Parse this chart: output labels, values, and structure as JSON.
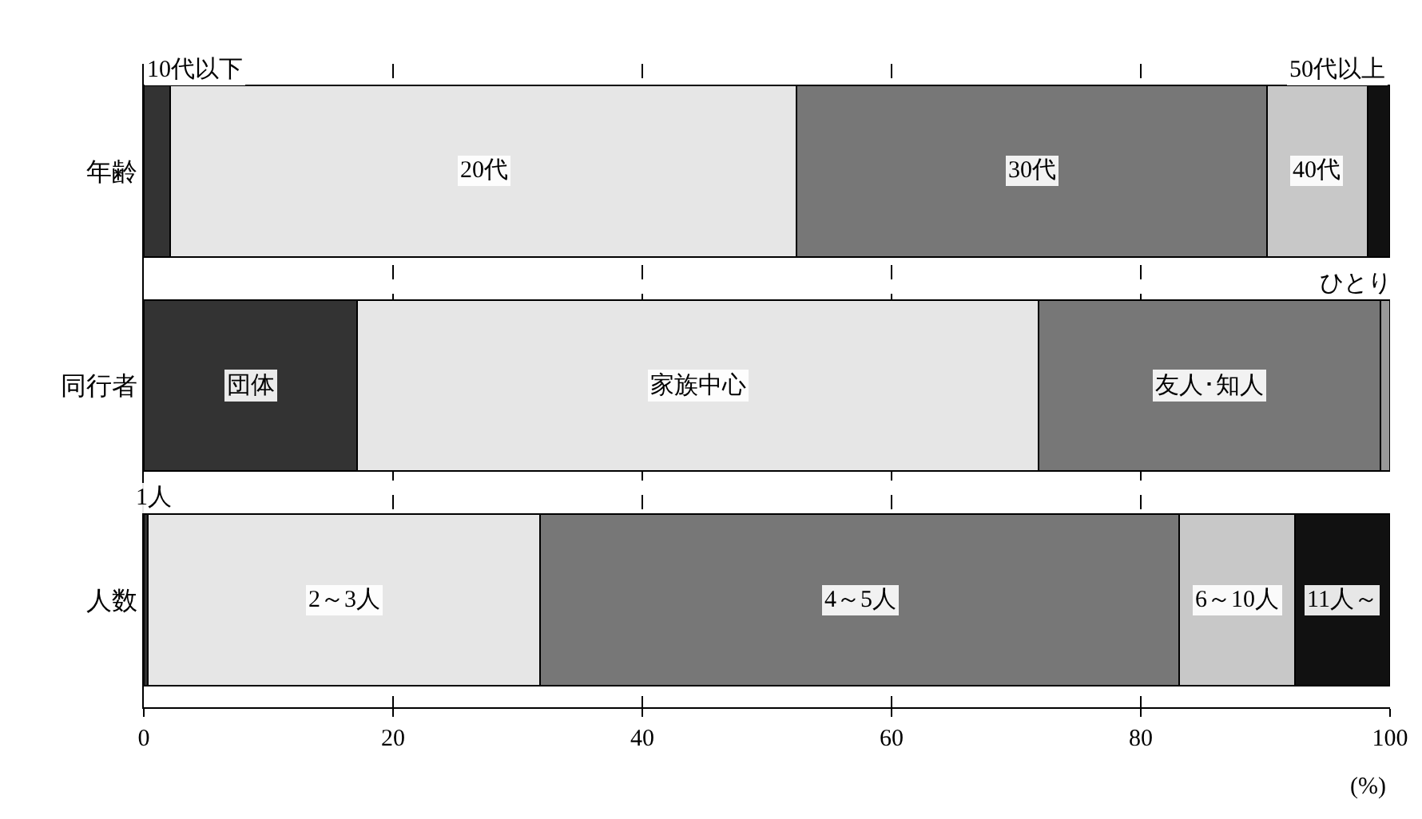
{
  "chart_data": {
    "type": "bar",
    "orientation": "horizontal",
    "stacked": true,
    "categories": [
      "年齢",
      "同行者",
      "人数"
    ],
    "series": [
      {
        "colors": [
          "#333333",
          "#333333",
          "#333333"
        ],
        "values": [
          2.1,
          17.1,
          0.3
        ]
      },
      {
        "colors": [
          "#e6e6e6",
          "#e6e6e6",
          "#e6e6e6"
        ],
        "values": [
          50.3,
          54.7,
          31.5
        ]
      },
      {
        "colors": [
          "#777777",
          "#777777",
          "#777777"
        ],
        "values": [
          37.7,
          27.4,
          51.3
        ]
      },
      {
        "colors": [
          "#c8c8c8",
          "#999999",
          "#c8c8c8"
        ],
        "values": [
          8.1,
          0.8,
          9.3
        ]
      },
      {
        "colors": [
          "#111111",
          "#111111",
          "#111111"
        ],
        "values": [
          1.8,
          null,
          7.6
        ]
      }
    ],
    "xlim": [
      0,
      100
    ],
    "xticks": [
      0,
      20,
      40,
      60,
      80,
      100
    ],
    "grid": "x",
    "xlabel": "(%)",
    "annotations": [
      "10代以下",
      "20代",
      "30代",
      "40代",
      "50代以上",
      "団体",
      "家族中心",
      "友人･知人",
      "ひとり",
      "1人",
      "2～3人",
      "4～5人",
      "6～10人",
      "11人～"
    ]
  }
}
